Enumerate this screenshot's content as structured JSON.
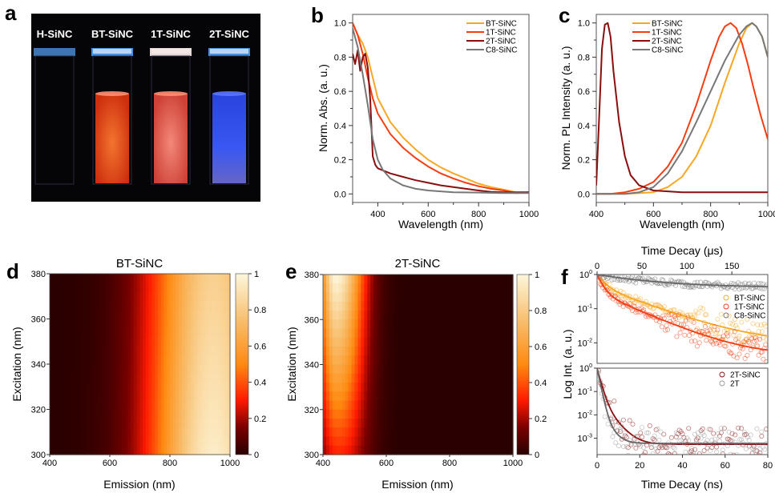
{
  "figure": {
    "panels": [
      "a",
      "b",
      "c",
      "d",
      "e",
      "f"
    ]
  },
  "photo": {
    "letter": "a",
    "labels": [
      "H-SiNC",
      "BT-SiNC",
      "1T-SiNC",
      "2T-SiNC"
    ],
    "emission_colors": [
      "#0a0a14",
      "#ff5a22",
      "#ff6a5a",
      "#3a5cff"
    ]
  },
  "colors": {
    "BT-SiNC": "#f7a823",
    "1T-SiNC": "#f43d12",
    "2T-SiNC": "#8b0e0e",
    "C8-SiNC": "#777777",
    "2T": "#999999"
  },
  "chart_data": [
    {
      "id": "b",
      "type": "line",
      "letter": "b",
      "xlabel": "Wavelength (nm)",
      "ylabel": "Norm. Abs. (a. u.)",
      "xlim": [
        300,
        1000
      ],
      "ylim": [
        -0.05,
        1.05
      ],
      "xticks": [
        400,
        600,
        800,
        1000
      ],
      "yticks": [
        0.0,
        0.2,
        0.4,
        0.6,
        0.8,
        1.0
      ],
      "ytick_labels": [
        "0.0",
        "0.2",
        "0.4",
        "0.6",
        "0.8",
        "1.0"
      ],
      "legend": "top-right",
      "series": [
        {
          "name": "BT-SiNC",
          "x": [
            300,
            320,
            340,
            360,
            380,
            400,
            450,
            500,
            550,
            600,
            650,
            700,
            750,
            800,
            850,
            900,
            950,
            1000
          ],
          "y": [
            1.0,
            0.93,
            0.88,
            0.8,
            0.68,
            0.56,
            0.42,
            0.33,
            0.26,
            0.2,
            0.155,
            0.12,
            0.09,
            0.06,
            0.04,
            0.025,
            0.01,
            0.01
          ]
        },
        {
          "name": "1T-SiNC",
          "x": [
            300,
            320,
            340,
            360,
            380,
            400,
            450,
            500,
            550,
            600,
            650,
            700,
            750,
            800,
            850,
            900,
            950,
            1000
          ],
          "y": [
            1.0,
            0.93,
            0.82,
            0.68,
            0.56,
            0.47,
            0.35,
            0.27,
            0.21,
            0.16,
            0.12,
            0.09,
            0.065,
            0.045,
            0.03,
            0.02,
            0.005,
            0.01
          ]
        },
        {
          "name": "2T-SiNC",
          "x": [
            300,
            310,
            320,
            330,
            340,
            350,
            360,
            370,
            380,
            390,
            400,
            450,
            500,
            550,
            600,
            650,
            700,
            750,
            800,
            850,
            900,
            1000
          ],
          "y": [
            0.82,
            0.76,
            0.84,
            0.72,
            0.8,
            0.82,
            0.74,
            0.55,
            0.22,
            0.17,
            0.15,
            0.12,
            0.1,
            0.08,
            0.065,
            0.05,
            0.04,
            0.03,
            0.02,
            0.012,
            0.01,
            0.01
          ]
        },
        {
          "name": "C8-SiNC",
          "x": [
            300,
            320,
            340,
            360,
            380,
            400,
            420,
            450,
            500,
            550,
            600,
            700,
            800,
            900,
            1000
          ],
          "y": [
            0.97,
            0.86,
            0.7,
            0.52,
            0.32,
            0.2,
            0.14,
            0.09,
            0.05,
            0.03,
            0.02,
            0.01,
            0.008,
            0.005,
            0.005
          ]
        }
      ]
    },
    {
      "id": "c",
      "type": "line",
      "letter": "c",
      "xlabel": "Wavelength (nm)",
      "ylabel": "Norm. PL Intensity (a. u.)",
      "xlim": [
        400,
        1000
      ],
      "ylim": [
        -0.05,
        1.05
      ],
      "xticks": [
        400,
        600,
        800,
        1000
      ],
      "yticks": [
        0.0,
        0.2,
        0.4,
        0.6,
        0.8,
        1.0
      ],
      "ytick_labels": [
        "0.0",
        "0.2",
        "0.4",
        "0.6",
        "0.8",
        "1.0"
      ],
      "legend": "top-center",
      "series": [
        {
          "name": "BT-SiNC",
          "x": [
            400,
            500,
            550,
            600,
            650,
            700,
            750,
            800,
            850,
            900,
            925,
            945,
            960,
            980,
            1000
          ],
          "y": [
            0,
            0,
            0.005,
            0.01,
            0.04,
            0.1,
            0.22,
            0.4,
            0.65,
            0.88,
            0.97,
            1.0,
            0.98,
            0.92,
            0.8
          ]
        },
        {
          "name": "1T-SiNC",
          "x": [
            400,
            450,
            500,
            550,
            600,
            650,
            700,
            750,
            800,
            830,
            850,
            870,
            890,
            910,
            930,
            950,
            975,
            1000
          ],
          "y": [
            0,
            0,
            0.01,
            0.03,
            0.07,
            0.16,
            0.3,
            0.52,
            0.78,
            0.92,
            0.98,
            1.0,
            0.97,
            0.88,
            0.76,
            0.62,
            0.46,
            0.32
          ]
        },
        {
          "name": "2T-SiNC",
          "x": [
            400,
            410,
            420,
            430,
            440,
            450,
            460,
            480,
            500,
            520,
            550,
            600,
            700,
            800,
            900,
            1000
          ],
          "y": [
            0.05,
            0.45,
            0.85,
            0.99,
            1.0,
            0.92,
            0.72,
            0.42,
            0.22,
            0.11,
            0.05,
            0.02,
            0.01,
            0.01,
            0.01,
            0.01
          ]
        },
        {
          "name": "C8-SiNC",
          "x": [
            400,
            500,
            550,
            600,
            650,
            700,
            750,
            800,
            850,
            900,
            925,
            945,
            960,
            980,
            1000
          ],
          "y": [
            0,
            0,
            0.01,
            0.04,
            0.12,
            0.25,
            0.42,
            0.6,
            0.78,
            0.93,
            0.98,
            1.0,
            0.98,
            0.92,
            0.8
          ]
        }
      ]
    },
    {
      "id": "d",
      "type": "heatmap",
      "letter": "d",
      "title": "BT-SiNC",
      "xlabel": "Emission (nm)",
      "ylabel": "Excitation (nm)",
      "xlim": [
        400,
        1000
      ],
      "ylim": [
        300,
        380
      ],
      "xticks": [
        400,
        600,
        800,
        1000
      ],
      "yticks": [
        300,
        320,
        340,
        360,
        380
      ],
      "colorbar": {
        "range": [
          0,
          1
        ],
        "ticks": [
          0,
          0.2,
          0.4,
          0.6,
          0.8,
          1
        ],
        "tick_labels": [
          "0",
          "0.2",
          "0.4",
          "0.6",
          "0.8",
          "1"
        ]
      },
      "peak": {
        "emission": 945,
        "excitation_range": [
          300,
          380
        ],
        "width": 150,
        "peak_value_top": 0.82,
        "peak_value_bottom": 0.95
      }
    },
    {
      "id": "e",
      "type": "heatmap",
      "letter": "e",
      "title": "2T-SiNC",
      "xlabel": "Emission (nm)",
      "ylabel": "Excitation (nm)",
      "xlim": [
        400,
        1000
      ],
      "ylim": [
        300,
        380
      ],
      "xticks": [
        400,
        600,
        800,
        1000
      ],
      "yticks": [
        300,
        320,
        340,
        360,
        380
      ],
      "colorbar": {
        "range": [
          0,
          1
        ],
        "ticks": [
          0,
          0.2,
          0.4,
          0.6,
          0.8,
          1
        ],
        "tick_labels": [
          "0",
          "0.2",
          "0.4",
          "0.6",
          "0.8",
          "1"
        ]
      },
      "peak": {
        "emission": 440,
        "excitation_range": [
          300,
          380
        ],
        "width": 35,
        "peak_value_top": 1.0,
        "peak_value_bottom": 0.2
      }
    },
    {
      "id": "f-top",
      "type": "scatter",
      "letter": "f",
      "xlabel": "Time Decay (μs)",
      "ylabel": "Log Int. (a. u.)",
      "xlim": [
        0,
        190
      ],
      "ylog": true,
      "ylim_exp": [
        -2.6,
        0
      ],
      "xticks": [
        0,
        50,
        100,
        150
      ],
      "yticks_exp": [
        0,
        -1,
        -2
      ],
      "legend": "right",
      "series": [
        {
          "name": "BT-SiNC",
          "fit": {
            "a1": 0.55,
            "t1": 8,
            "a2": 0.44,
            "t2": 45,
            "c": 0.0095
          }
        },
        {
          "name": "1T-SiNC",
          "fit": {
            "a1": 0.7,
            "t1": 6,
            "a2": 0.29,
            "t2": 38,
            "c": 0.0042
          }
        },
        {
          "name": "C8-SiNC",
          "fit": {
            "a1": 0.58,
            "t1": 60,
            "a2": 0,
            "t2": 1,
            "c": 0.42
          }
        }
      ]
    },
    {
      "id": "f-bottom",
      "type": "scatter",
      "xlabel": "Time Decay (ns)",
      "ylabel": "Log Int. (a. u.)",
      "xlim": [
        0,
        80
      ],
      "ylog": true,
      "ylim_exp": [
        -3.7,
        0
      ],
      "xticks": [
        0,
        20,
        40,
        60,
        80
      ],
      "yticks_exp": [
        0,
        -1,
        -2,
        -3
      ],
      "legend": "top-right",
      "series": [
        {
          "name": "2T-SiNC",
          "fit": {
            "a1": 0.9,
            "t1": 1.3,
            "a2": 0.05,
            "t2": 4,
            "c": 0.00055
          }
        },
        {
          "name": "2T",
          "fit": {
            "a1": 0.95,
            "t1": 1.0,
            "a2": 0.02,
            "t2": 3,
            "c": 0.0006
          }
        }
      ]
    }
  ]
}
